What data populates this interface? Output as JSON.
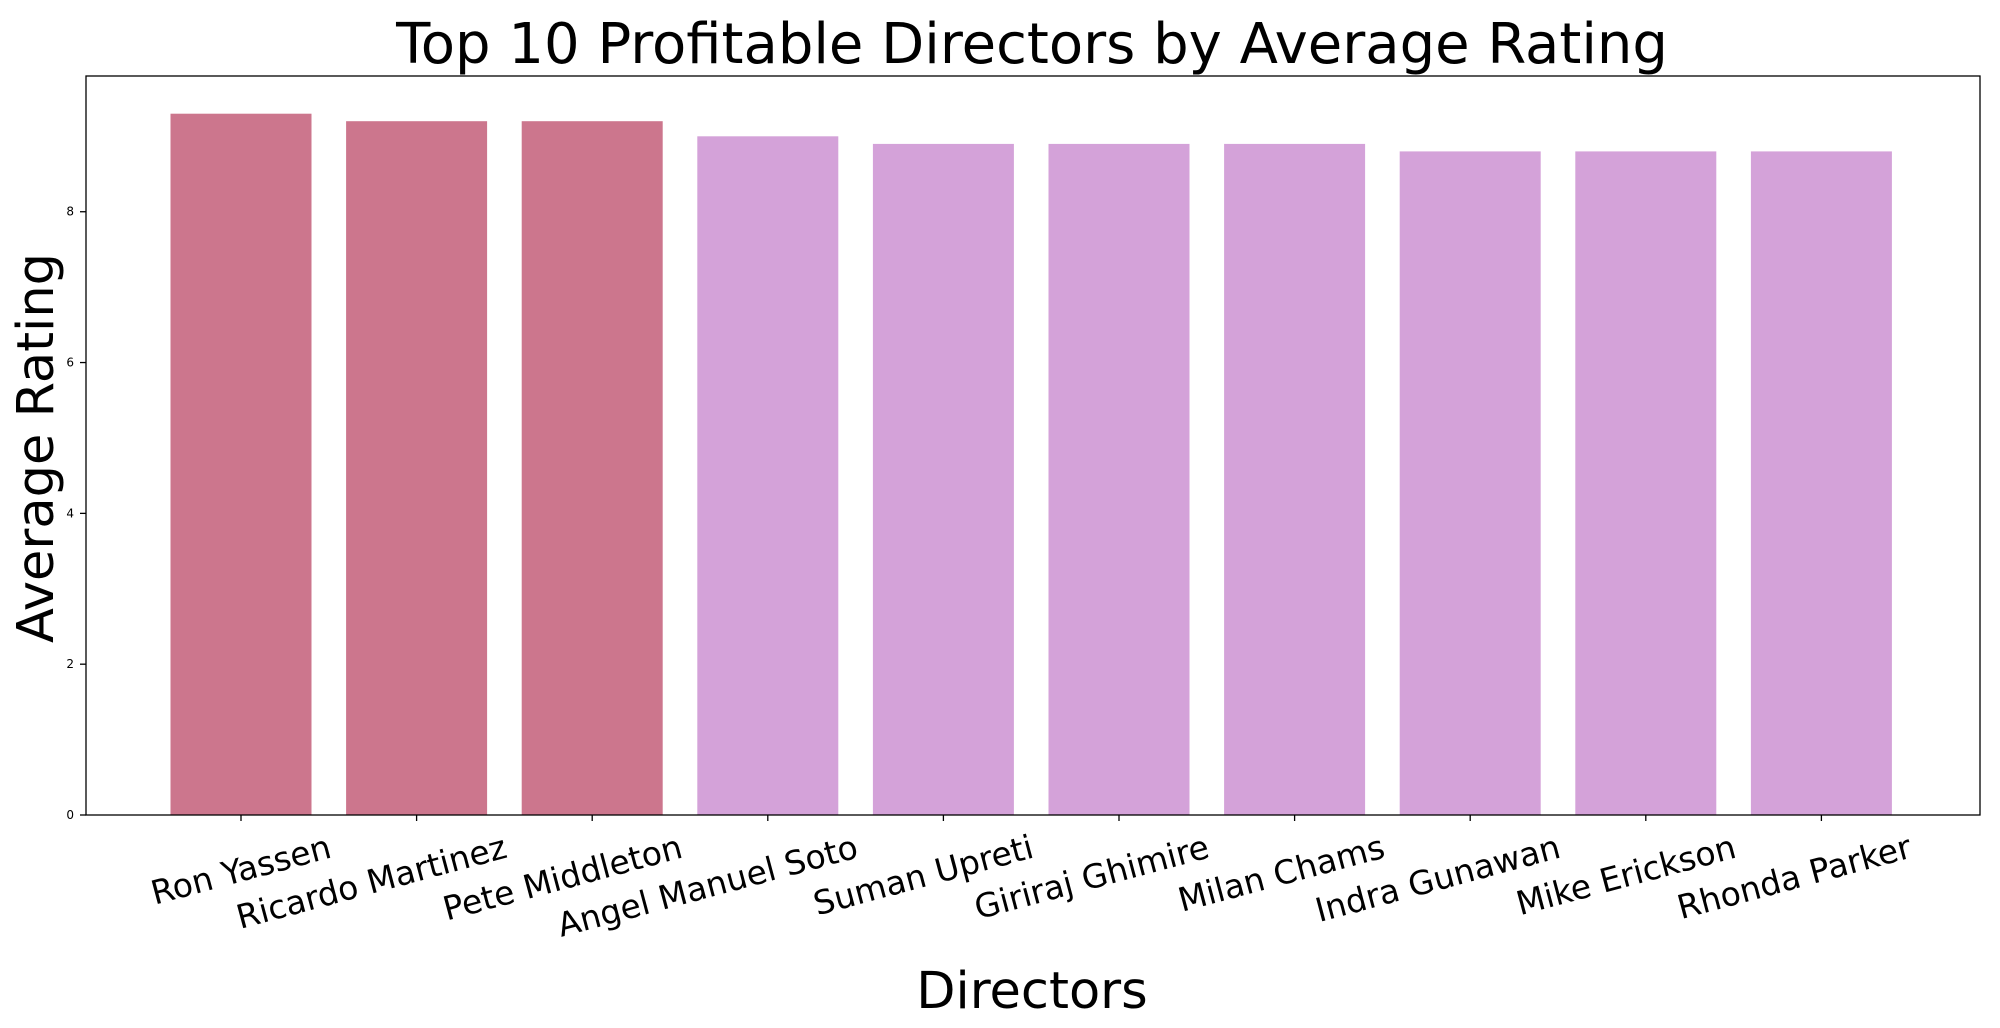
{
  "chart_data": {
    "type": "bar",
    "title": "Top 10 Profitable Directors by Average Rating",
    "xlabel": "Directors",
    "ylabel": "Average Rating",
    "categories": [
      "Ron Yassen",
      "Ricardo Martinez",
      "Pete Middleton",
      "Angel Manuel Soto",
      "Suman Upreti",
      "Giriraj Ghimire",
      "Milan Chams",
      "Indra Gunawan",
      "Mike Erickson",
      "Rhonda Parker"
    ],
    "values": [
      9.3,
      9.2,
      9.2,
      9.0,
      8.9,
      8.9,
      8.9,
      8.8,
      8.8,
      8.8
    ],
    "ylim": [
      0,
      9.8
    ],
    "yticks": [
      "0",
      "2",
      "4",
      "6",
      "8"
    ],
    "grid": false,
    "bar_colors": [
      "#cc768d",
      "#cc768d",
      "#cc768d",
      "#d4a2d9",
      "#d4a2d9",
      "#d4a2d9",
      "#d4a2d9",
      "#d4a2d9",
      "#d4a2d9",
      "#d4a2d9"
    ]
  }
}
